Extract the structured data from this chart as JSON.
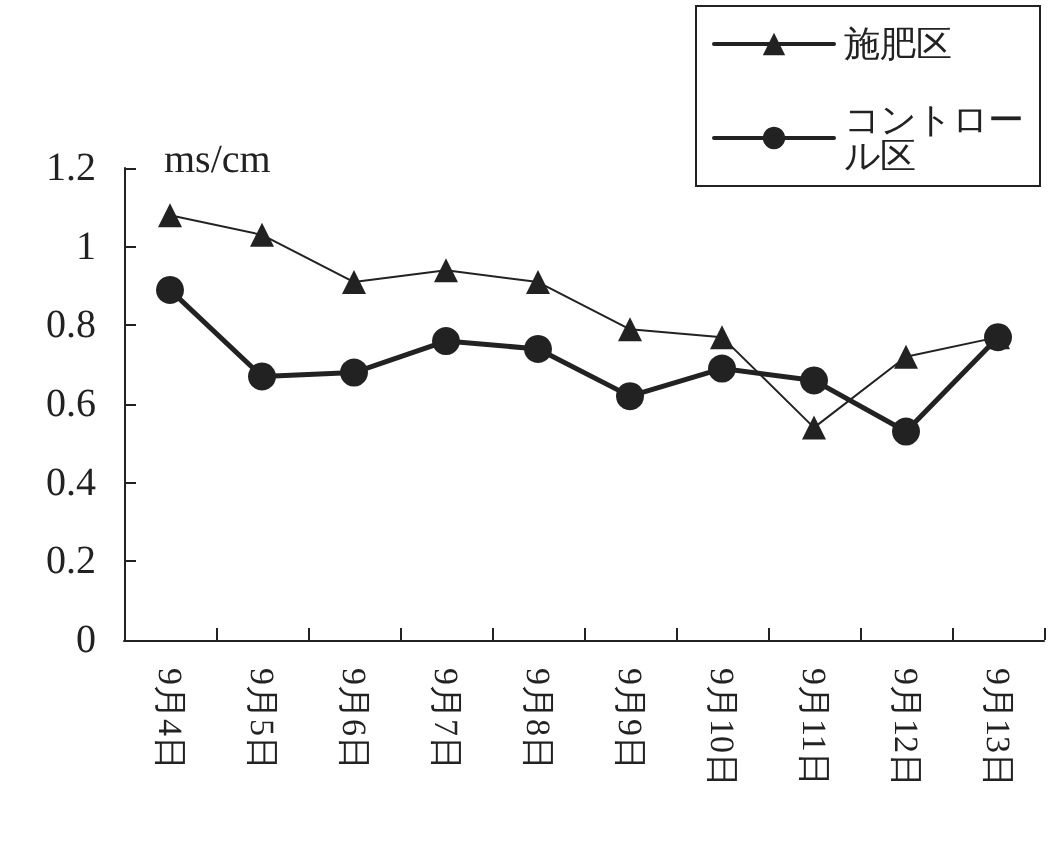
{
  "chart_data": {
    "type": "line",
    "ylabel": "ms/cm",
    "categories": [
      "9月4日",
      "9月5日",
      "9月6日",
      "9月7日",
      "9月8日",
      "9月9日",
      "9月10日",
      "9月11日",
      "9月12日",
      "9月13日"
    ],
    "series": [
      {
        "name": "施肥区",
        "color": "#222222",
        "marker": "triangle",
        "values": [
          1.08,
          1.03,
          0.91,
          0.94,
          0.91,
          0.79,
          0.77,
          0.54,
          0.72,
          0.77
        ]
      },
      {
        "name": "コントロール区",
        "color": "#222222",
        "marker": "circle",
        "values": [
          0.89,
          0.67,
          0.68,
          0.76,
          0.74,
          0.62,
          0.69,
          0.66,
          0.53,
          0.77
        ]
      }
    ],
    "ylim": [
      0,
      1.2
    ],
    "yticks": [
      0,
      0.2,
      0.4,
      0.6,
      0.8,
      1,
      1.2
    ],
    "grid": false,
    "legend": "top right",
    "line_style": "solid"
  }
}
